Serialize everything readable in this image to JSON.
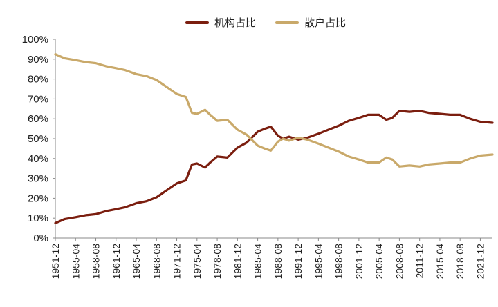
{
  "chart_data": {
    "type": "line",
    "title": "",
    "xlabel": "",
    "ylabel": "",
    "legend_position": "top-center",
    "grid": false,
    "ylim": [
      0,
      100
    ],
    "y_tick_labels": [
      "0%",
      "10%",
      "20%",
      "30%",
      "40%",
      "50%",
      "60%",
      "70%",
      "80%",
      "90%",
      "100%"
    ],
    "x_tick_labels": [
      "1951-12",
      "1955-04",
      "1958-08",
      "1961-12",
      "1965-04",
      "1968-08",
      "1971-12",
      "1975-04",
      "1978-08",
      "1981-12",
      "1985-04",
      "1988-08",
      "1991-12",
      "1995-04",
      "1998-08",
      "2001-12",
      "2005-04",
      "2008-08",
      "2011-12",
      "2015-04",
      "2018-08",
      "2021-12"
    ],
    "x_range": [
      "1951-12",
      "2023-12"
    ],
    "series": [
      {
        "name": "机构占比",
        "color": "#7b1e0f",
        "points": [
          [
            "1951-12",
            7.5
          ],
          [
            "1953-06",
            9.5
          ],
          [
            "1955-04",
            10.5
          ],
          [
            "1956-12",
            11.5
          ],
          [
            "1958-08",
            12
          ],
          [
            "1960-04",
            13.5
          ],
          [
            "1961-12",
            14.5
          ],
          [
            "1963-06",
            15.5
          ],
          [
            "1965-04",
            17.5
          ],
          [
            "1966-12",
            18.5
          ],
          [
            "1968-08",
            20.5
          ],
          [
            "1970-04",
            24
          ],
          [
            "1971-12",
            27.5
          ],
          [
            "1973-06",
            29
          ],
          [
            "1974-06",
            37
          ],
          [
            "1975-04",
            37.5
          ],
          [
            "1976-08",
            35.5
          ],
          [
            "1977-06",
            38
          ],
          [
            "1978-08",
            41
          ],
          [
            "1980-04",
            40.5
          ],
          [
            "1981-12",
            45.5
          ],
          [
            "1983-06",
            48
          ],
          [
            "1985-04",
            53.5
          ],
          [
            "1986-06",
            55
          ],
          [
            "1987-06",
            56
          ],
          [
            "1988-08",
            51.5
          ],
          [
            "1989-06",
            50
          ],
          [
            "1990-06",
            51
          ],
          [
            "1991-12",
            49.5
          ],
          [
            "1993-06",
            50.5
          ],
          [
            "1995-04",
            52.5
          ],
          [
            "1996-12",
            54.5
          ],
          [
            "1998-08",
            56.5
          ],
          [
            "2000-04",
            59
          ],
          [
            "2001-12",
            60.5
          ],
          [
            "2003-06",
            62
          ],
          [
            "2005-04",
            62
          ],
          [
            "2006-06",
            59.5
          ],
          [
            "2007-06",
            60.5
          ],
          [
            "2008-08",
            64
          ],
          [
            "2010-04",
            63.5
          ],
          [
            "2011-12",
            64
          ],
          [
            "2013-06",
            63
          ],
          [
            "2015-04",
            62.5
          ],
          [
            "2016-12",
            62
          ],
          [
            "2018-08",
            62
          ],
          [
            "2020-04",
            60
          ],
          [
            "2021-12",
            58.5
          ],
          [
            "2023-12",
            58
          ]
        ]
      },
      {
        "name": "散户占比",
        "color": "#c9a96a",
        "points": [
          [
            "1951-12",
            92.5
          ],
          [
            "1953-06",
            90.5
          ],
          [
            "1955-04",
            89.5
          ],
          [
            "1956-12",
            88.5
          ],
          [
            "1958-08",
            88
          ],
          [
            "1960-04",
            86.5
          ],
          [
            "1961-12",
            85.5
          ],
          [
            "1963-06",
            84.5
          ],
          [
            "1965-04",
            82.5
          ],
          [
            "1966-12",
            81.5
          ],
          [
            "1968-08",
            79.5
          ],
          [
            "1970-04",
            76
          ],
          [
            "1971-12",
            72.5
          ],
          [
            "1973-06",
            71
          ],
          [
            "1974-06",
            63
          ],
          [
            "1975-04",
            62.5
          ],
          [
            "1976-08",
            64.5
          ],
          [
            "1977-06",
            62
          ],
          [
            "1978-08",
            59
          ],
          [
            "1980-04",
            59.5
          ],
          [
            "1981-12",
            54.5
          ],
          [
            "1983-06",
            52
          ],
          [
            "1985-04",
            46.5
          ],
          [
            "1986-06",
            45
          ],
          [
            "1987-06",
            44
          ],
          [
            "1988-08",
            48.5
          ],
          [
            "1989-06",
            50
          ],
          [
            "1990-06",
            49
          ],
          [
            "1991-12",
            50.5
          ],
          [
            "1993-06",
            49.5
          ],
          [
            "1995-04",
            47.5
          ],
          [
            "1996-12",
            45.5
          ],
          [
            "1998-08",
            43.5
          ],
          [
            "2000-04",
            41
          ],
          [
            "2001-12",
            39.5
          ],
          [
            "2003-06",
            38
          ],
          [
            "2005-04",
            38
          ],
          [
            "2006-06",
            40.5
          ],
          [
            "2007-06",
            39.5
          ],
          [
            "2008-08",
            36
          ],
          [
            "2010-04",
            36.5
          ],
          [
            "2011-12",
            36
          ],
          [
            "2013-06",
            37
          ],
          [
            "2015-04",
            37.5
          ],
          [
            "2016-12",
            38
          ],
          [
            "2018-08",
            38
          ],
          [
            "2020-04",
            40
          ],
          [
            "2021-12",
            41.5
          ],
          [
            "2023-12",
            42
          ]
        ]
      }
    ]
  }
}
